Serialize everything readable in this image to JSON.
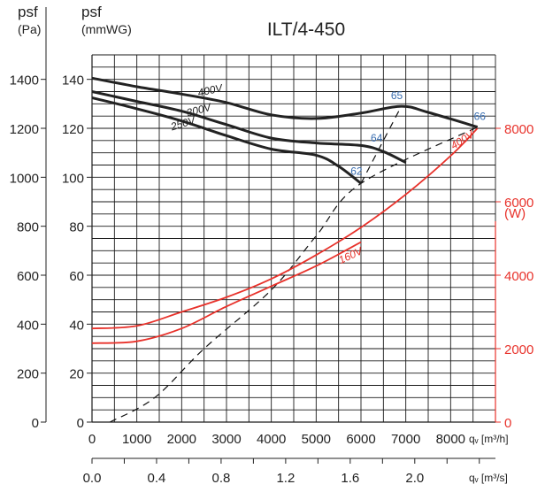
{
  "chart_data": {
    "type": "line",
    "title": "ILT/4-450",
    "left_axis_pa": {
      "label_top": "psf",
      "label_unit": "(Pa)",
      "ticks": [
        0,
        200,
        400,
        600,
        800,
        1000,
        1200,
        1400
      ],
      "range": [
        0,
        1500
      ]
    },
    "left_axis_mmwg": {
      "label_top": "psf",
      "label_unit": "(mmWG)",
      "ticks": [
        0,
        20,
        40,
        60,
        80,
        100,
        120,
        140
      ],
      "range": [
        0,
        150
      ]
    },
    "right_axis_w": {
      "label_unit": "(W)",
      "ticks": [
        0,
        2000,
        4000,
        6000,
        8000
      ],
      "range": [
        0,
        10000
      ],
      "color": "#e8322b"
    },
    "x_axis_m3h": {
      "label": "qᵥ [m³/h]",
      "ticks": [
        0,
        1000,
        2000,
        3000,
        4000,
        5000,
        6000,
        7000,
        8000
      ],
      "range": [
        0,
        9000
      ]
    },
    "x_axis_m3s": {
      "label": "qᵥ [m³/s]",
      "ticks": [
        "0.0",
        "0.4",
        "0.8",
        "1.2",
        "1.6",
        "2.0"
      ],
      "range": [
        0,
        2.5
      ]
    },
    "pressure_series": [
      {
        "name": "400V",
        "points": [
          [
            0,
            1405
          ],
          [
            1000,
            1370
          ],
          [
            2000,
            1340
          ],
          [
            3000,
            1305
          ],
          [
            4000,
            1255
          ],
          [
            5000,
            1240
          ],
          [
            6000,
            1262
          ],
          [
            6900,
            1290
          ],
          [
            7500,
            1265
          ],
          [
            8600,
            1205
          ]
        ]
      },
      {
        "name": "300V",
        "points": [
          [
            0,
            1350
          ],
          [
            1000,
            1310
          ],
          [
            2000,
            1270
          ],
          [
            3000,
            1215
          ],
          [
            4000,
            1160
          ],
          [
            5000,
            1140
          ],
          [
            6000,
            1130
          ],
          [
            6500,
            1105
          ],
          [
            7000,
            1060
          ]
        ]
      },
      {
        "name": "250V",
        "points": [
          [
            0,
            1325
          ],
          [
            1000,
            1280
          ],
          [
            2000,
            1230
          ],
          [
            3000,
            1170
          ],
          [
            4000,
            1115
          ],
          [
            5000,
            1090
          ],
          [
            5500,
            1045
          ],
          [
            6000,
            975
          ]
        ]
      }
    ],
    "power_series": [
      {
        "name": "400V",
        "points": [
          [
            0,
            2550
          ],
          [
            1000,
            2620
          ],
          [
            2000,
            3000
          ],
          [
            3000,
            3400
          ],
          [
            4000,
            3900
          ],
          [
            5000,
            4550
          ],
          [
            6000,
            5300
          ],
          [
            7000,
            6200
          ],
          [
            8000,
            7250
          ],
          [
            8600,
            8000
          ]
        ]
      },
      {
        "name": "160V",
        "points": [
          [
            0,
            2150
          ],
          [
            1000,
            2200
          ],
          [
            2000,
            2550
          ],
          [
            3000,
            3150
          ],
          [
            4000,
            3700
          ],
          [
            5000,
            4250
          ],
          [
            6000,
            4900
          ]
        ]
      }
    ],
    "efficiency_line": [
      [
        400,
        0
      ],
      [
        1400,
        100
      ],
      [
        2500,
        300
      ],
      [
        4000,
        540
      ],
      [
        5000,
        760
      ],
      [
        6000,
        975
      ],
      [
        8600,
        1205
      ]
    ],
    "efficiency_branch": [
      [
        6000,
        975
      ],
      [
        6900,
        1290
      ]
    ],
    "point_labels": [
      {
        "text": "62",
        "x": 5900,
        "y": 1010
      },
      {
        "text": "64",
        "x": 6350,
        "y": 1145
      },
      {
        "text": "65",
        "x": 6800,
        "y": 1320
      },
      {
        "text": "66",
        "x": 8650,
        "y": 1235
      }
    ],
    "grid": true,
    "colors": {
      "pressure": "#222222",
      "power": "#e8322b",
      "efficiency_labels": "#3a6eb0"
    }
  }
}
